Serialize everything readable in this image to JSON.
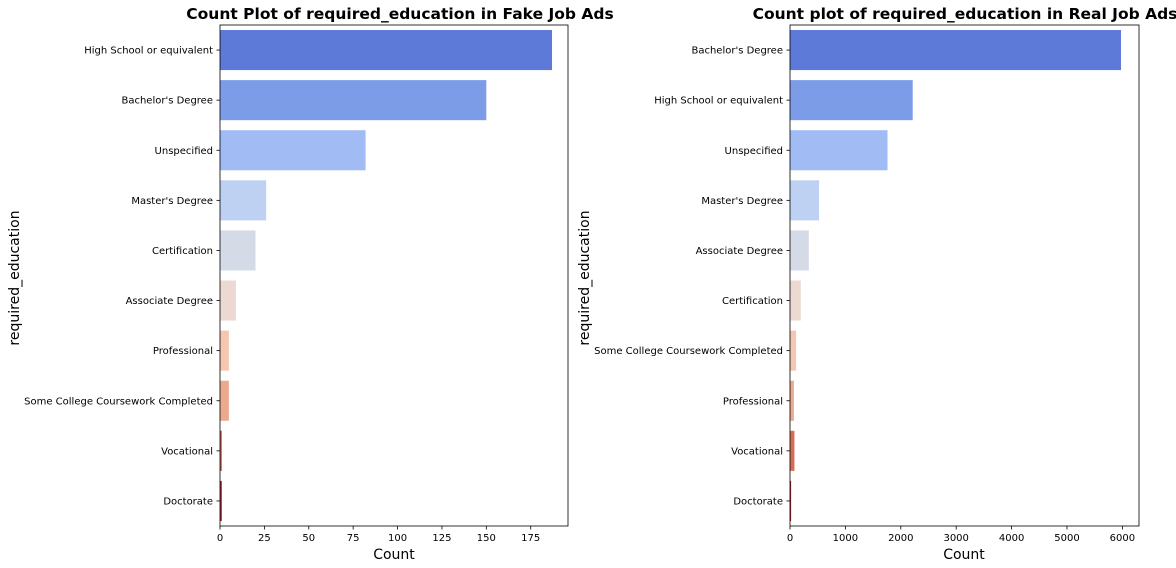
{
  "chart_data": [
    {
      "type": "bar",
      "orientation": "horizontal",
      "title": "Count Plot of required_education in Fake Job Ads",
      "xlabel": "Count",
      "ylabel": "required_education",
      "xlim": [
        0,
        196
      ],
      "xticks": [
        "0",
        "25",
        "50",
        "75",
        "100",
        "125",
        "150",
        "175"
      ],
      "xtick_values": [
        0,
        25,
        50,
        75,
        100,
        125,
        150,
        175
      ],
      "categories": [
        "High School or equivalent",
        "Bachelor's Degree",
        "Unspecified",
        "Master's Degree",
        "Certification",
        "Associate Degree",
        "Professional",
        "Some College Coursework Completed",
        "Vocational",
        "Doctorate"
      ],
      "values": [
        187,
        150,
        82,
        26,
        20,
        9,
        5,
        5,
        1,
        1
      ],
      "colors": [
        "#5e7ad8",
        "#7d9ce8",
        "#a1bbf5",
        "#bed1f3",
        "#d5dbe6",
        "#ecdad2",
        "#f4c7b0",
        "#eba98f",
        "#c6574a",
        "#a31e2d"
      ],
      "grid": false,
      "legend": "none"
    },
    {
      "type": "bar",
      "orientation": "horizontal",
      "title": "Count plot of required_education in Real Job Ads",
      "xlabel": "Count",
      "ylabel": "required_education",
      "xlim": [
        0,
        6300
      ],
      "xticks": [
        "0",
        "1000",
        "2000",
        "3000",
        "4000",
        "5000",
        "6000"
      ],
      "xtick_values": [
        0,
        1000,
        2000,
        3000,
        4000,
        5000,
        6000
      ],
      "categories": [
        "Bachelor's Degree",
        "High School or equivalent",
        "Unspecified",
        "Master's Degree",
        "Associate Degree",
        "Certification",
        "Some College Coursework Completed",
        "Professional",
        "Vocational",
        "Doctorate"
      ],
      "values": [
        5975,
        2215,
        1760,
        525,
        340,
        195,
        110,
        70,
        80,
        20
      ],
      "colors": [
        "#5e7ad8",
        "#7d9ce8",
        "#a1bbf5",
        "#bed1f3",
        "#d5dbe6",
        "#ecdad2",
        "#f4c7b0",
        "#eba98f",
        "#d46e57",
        "#a31e2d"
      ],
      "grid": false,
      "legend": "none"
    }
  ]
}
